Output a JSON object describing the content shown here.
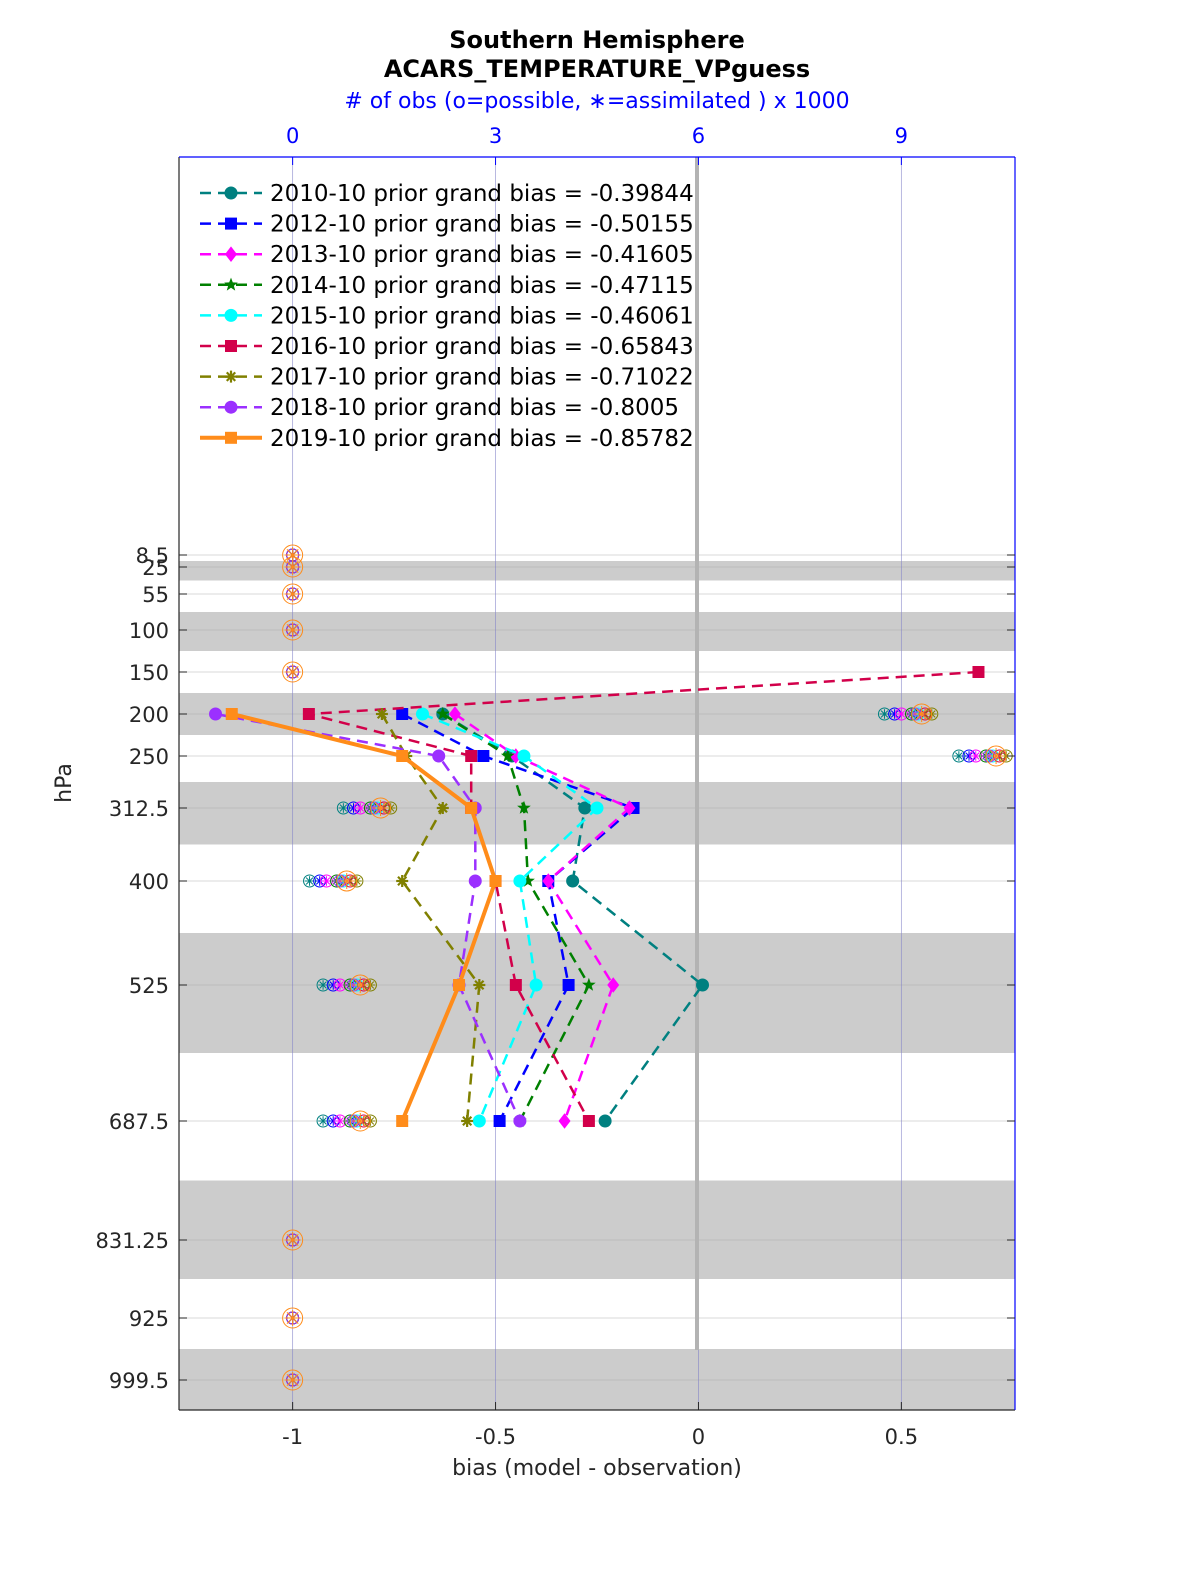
{
  "chart_data": {
    "type": "line",
    "title": "Southern Hemisphere",
    "subtitle": "ACARS_TEMPERATURE_VPguess",
    "top_axis_label": "# of obs (o=possible, ∗=assimilated ) x 1000",
    "xlabel": "bias (model - observation)",
    "ylabel": "hPa",
    "xlim": [
      -1.28,
      0.78
    ],
    "x_ticks": [
      "-1",
      "-0.5",
      "0",
      "0.5"
    ],
    "x_tick_values": [
      -1,
      -0.5,
      0,
      0.5
    ],
    "top_xlim": [
      -1.68,
      10.68
    ],
    "top_ticks": [
      "0",
      "3",
      "6",
      "9"
    ],
    "top_tick_values": [
      0,
      3,
      6,
      9
    ],
    "y_reversed": true,
    "y_ticks": [
      "8.5",
      "25",
      "55",
      "100",
      "150",
      "200",
      "250",
      "312.5",
      "400",
      "525",
      "687.5",
      "831.25",
      "925",
      "999.5"
    ],
    "levels": [
      8.5,
      25,
      55,
      100,
      150,
      200,
      250,
      312.5,
      400,
      525,
      687.5,
      831.25,
      925,
      999.5
    ],
    "legend_position": "top-left",
    "series": [
      {
        "name": "2010-10 prior grand bias = -0.39844",
        "color": "#008080",
        "marker": "circle",
        "style": "dashed",
        "levels": [
          200,
          250,
          312.5,
          400,
          525,
          687.5
        ],
        "values": [
          -0.63,
          -0.46,
          -0.28,
          -0.31,
          0.01,
          -0.23
        ]
      },
      {
        "name": "2012-10 prior grand bias = -0.50155",
        "color": "#0000ff",
        "marker": "square",
        "style": "dashed",
        "levels": [
          200,
          250,
          312.5,
          400,
          525,
          687.5
        ],
        "values": [
          -0.73,
          -0.53,
          -0.16,
          -0.37,
          -0.32,
          -0.49
        ]
      },
      {
        "name": "2013-10 prior grand bias = -0.41605",
        "color": "#ff00ff",
        "marker": "diamond",
        "style": "dashed",
        "levels": [
          200,
          250,
          312.5,
          400,
          525,
          687.5
        ],
        "values": [
          -0.6,
          -0.45,
          -0.17,
          -0.37,
          -0.21,
          -0.33
        ]
      },
      {
        "name": "2014-10 prior grand bias = -0.47115",
        "color": "#008000",
        "marker": "star",
        "style": "dashed",
        "levels": [
          200,
          250,
          312.5,
          400,
          525,
          687.5
        ],
        "values": [
          -0.63,
          -0.47,
          -0.43,
          -0.42,
          -0.27,
          -0.44
        ]
      },
      {
        "name": "2015-10 prior grand bias = -0.46061",
        "color": "#00ffff",
        "marker": "hexagon",
        "style": "dashed",
        "levels": [
          200,
          250,
          312.5,
          400,
          525,
          687.5
        ],
        "values": [
          -0.68,
          -0.43,
          -0.25,
          -0.44,
          -0.4,
          -0.54
        ]
      },
      {
        "name": "2016-10 prior grand bias = -0.65843",
        "color": "#d2004a",
        "marker": "square",
        "style": "dashed",
        "levels": [
          150,
          200,
          250,
          312.5,
          400,
          525,
          687.5
        ],
        "values": [
          0.69,
          -0.96,
          -0.56,
          -0.56,
          -0.5,
          -0.45,
          -0.27
        ]
      },
      {
        "name": "2017-10 prior grand bias = -0.71022",
        "color": "#808000",
        "marker": "asterisk",
        "style": "dashed",
        "levels": [
          200,
          250,
          312.5,
          400,
          525,
          687.5
        ],
        "values": [
          -0.78,
          -0.72,
          -0.63,
          -0.73,
          -0.54,
          -0.57
        ]
      },
      {
        "name": "2018-10 prior grand bias = -0.8005",
        "color": "#9b30ff",
        "marker": "circle",
        "style": "dashed",
        "levels": [
          200,
          250,
          312.5,
          400,
          525,
          687.5
        ],
        "values": [
          -1.19,
          -0.64,
          -0.55,
          -0.55,
          -0.59,
          -0.44
        ]
      },
      {
        "name": "2019-10 prior grand bias = -0.85782",
        "color": "#ff8c1a",
        "marker": "square",
        "style": "solid",
        "levels": [
          200,
          250,
          312.5,
          400,
          525,
          687.5
        ],
        "values": [
          -1.15,
          -0.73,
          -0.56,
          -0.5,
          -0.59,
          -0.73
        ]
      }
    ],
    "obs_counts_thousands": {
      "note_levels": [
        8.5,
        25,
        55,
        100,
        150,
        200,
        250,
        312.5,
        400,
        525,
        687.5,
        831.25,
        925,
        999.5
      ],
      "possible": [
        0,
        0,
        0,
        0,
        0,
        9.2,
        10.3,
        1.2,
        0.7,
        0.9,
        0.9,
        0,
        0,
        0
      ],
      "assimilated": [
        0,
        0,
        0,
        0,
        0,
        8.9,
        10.1,
        1.1,
        0.6,
        0.8,
        0.8,
        0,
        0,
        0
      ]
    }
  }
}
